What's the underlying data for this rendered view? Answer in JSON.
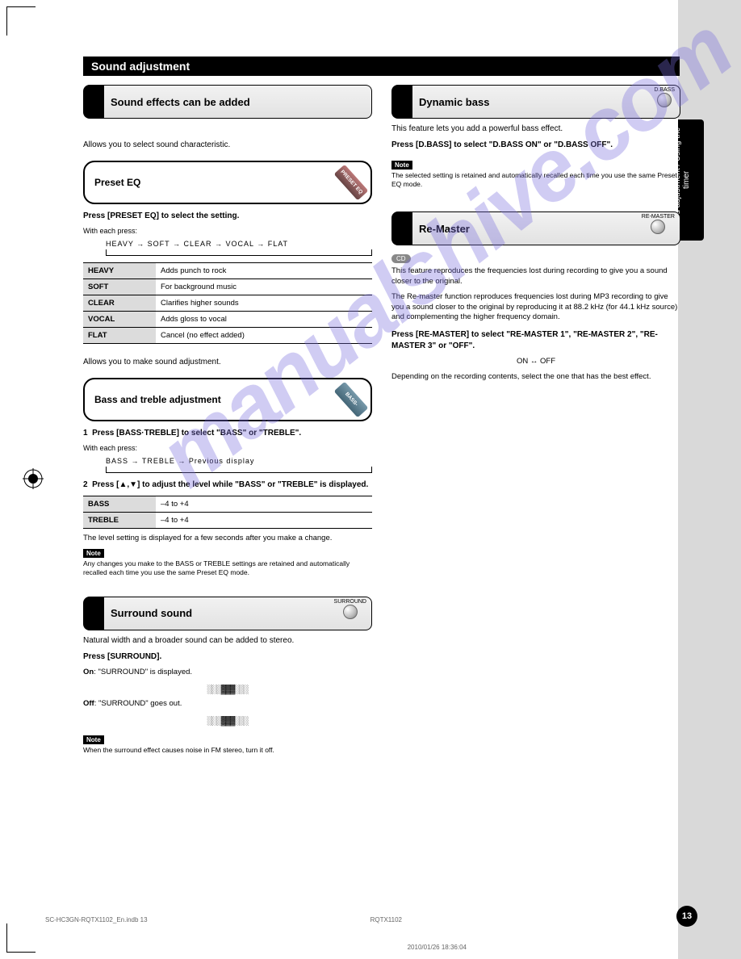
{
  "page": {
    "number": "13",
    "footer_code": "RQTX1102",
    "footer_time": "2010/01/26   18:36:04",
    "footer_file": "SC-HC3GN-RQTX1102_En.indb   13"
  },
  "side_tab": "Sound adjustment / Using the timer",
  "title": "Sound adjustment",
  "watermark": "manualshive.com",
  "left": {
    "section1": {
      "heading": "Sound effects can be added"
    },
    "preset_eq": {
      "title": "Preset EQ",
      "tag": "PRESET EQ",
      "intro": "Allows you to select sound characteristic.",
      "step": "Press [PRESET EQ] to select the setting.",
      "cycle_items": [
        "HEAVY",
        "SOFT",
        "CLEAR",
        "VOCAL",
        "FLAT"
      ],
      "table_caption": "With each press:",
      "rows": [
        {
          "k": "HEAVY",
          "v": "Adds punch to rock"
        },
        {
          "k": "SOFT",
          "v": "For background music"
        },
        {
          "k": "CLEAR",
          "v": "Clarifies higher sounds"
        },
        {
          "k": "VOCAL",
          "v": "Adds gloss to vocal"
        },
        {
          "k": "FLAT",
          "v": "Cancel (no effect added)"
        }
      ]
    },
    "bass_treble": {
      "title": "Bass and treble adjustment",
      "tag": "BASS-TREBLE",
      "intro": "Allows you to make sound adjustment.",
      "step1_num": "1",
      "step1": "Press [BASS·TREBLE] to select \"BASS\" or \"TREBLE\".",
      "cycle_items": [
        "BASS",
        "TREBLE",
        "Previous display"
      ],
      "step2_num": "2",
      "step2": "Press [▲,▼] to adjust the level while \"BASS\" or \"TREBLE\" is displayed.",
      "rows": [
        {
          "k": "BASS",
          "v": "–4 to +4"
        },
        {
          "k": "TREBLE",
          "v": "–4 to +4"
        }
      ],
      "after1": "The level setting is displayed for a few seconds after you make a change.",
      "note_label": "Note",
      "note": "Any changes you make to the BASS or TREBLE settings are retained and automatically recalled each time you use the same Preset EQ mode."
    },
    "surround": {
      "heading": "Surround sound",
      "btn_label": "SURROUND",
      "intro": "Natural width and a broader sound can be added to stereo.",
      "step": "Press [SURROUND].",
      "on_label": "On",
      "on_text": "\"SURROUND\" is displayed.",
      "off_label": "Off",
      "off_text": "\"SURROUND\" goes out.",
      "note_label": "Note",
      "note": "When the surround effect causes noise in FM stereo, turn it off."
    }
  },
  "right": {
    "dbass": {
      "heading": "Dynamic bass",
      "btn_label": "D.BASS",
      "intro": "This feature lets you add a powerful bass effect.",
      "step": "Press [D.BASS] to select \"D.BASS ON\" or \"D.BASS OFF\".",
      "note_label": "Note",
      "note": "The selected setting is retained and automatically recalled each time you use the same Preset EQ mode."
    },
    "remaster": {
      "heading": "Re-Master",
      "btn_label": "RE-MASTER",
      "badge": "CD",
      "p1": "This feature reproduces the frequencies lost during recording to give you a sound closer to the original.",
      "p2": "The Re-master function reproduces frequencies lost during MP3 recording to give you a sound closer to the original by reproducing it at 88.2 kHz (for 44.1 kHz source) and complementing the higher frequency domain.",
      "step": "Press [RE-MASTER] to select \"RE-MASTER 1\", \"RE-MASTER 2\", \"RE-MASTER 3\" or \"OFF\".",
      "toggle": "ON ↔ OFF",
      "after": "Depending on the recording contents, select the one that has the best effect."
    }
  },
  "colors": {
    "black": "#000000",
    "grey_side": "#d9d9d9",
    "row_shade": "#dcdcdc",
    "watermark": "rgba(120,110,220,0.35)"
  }
}
